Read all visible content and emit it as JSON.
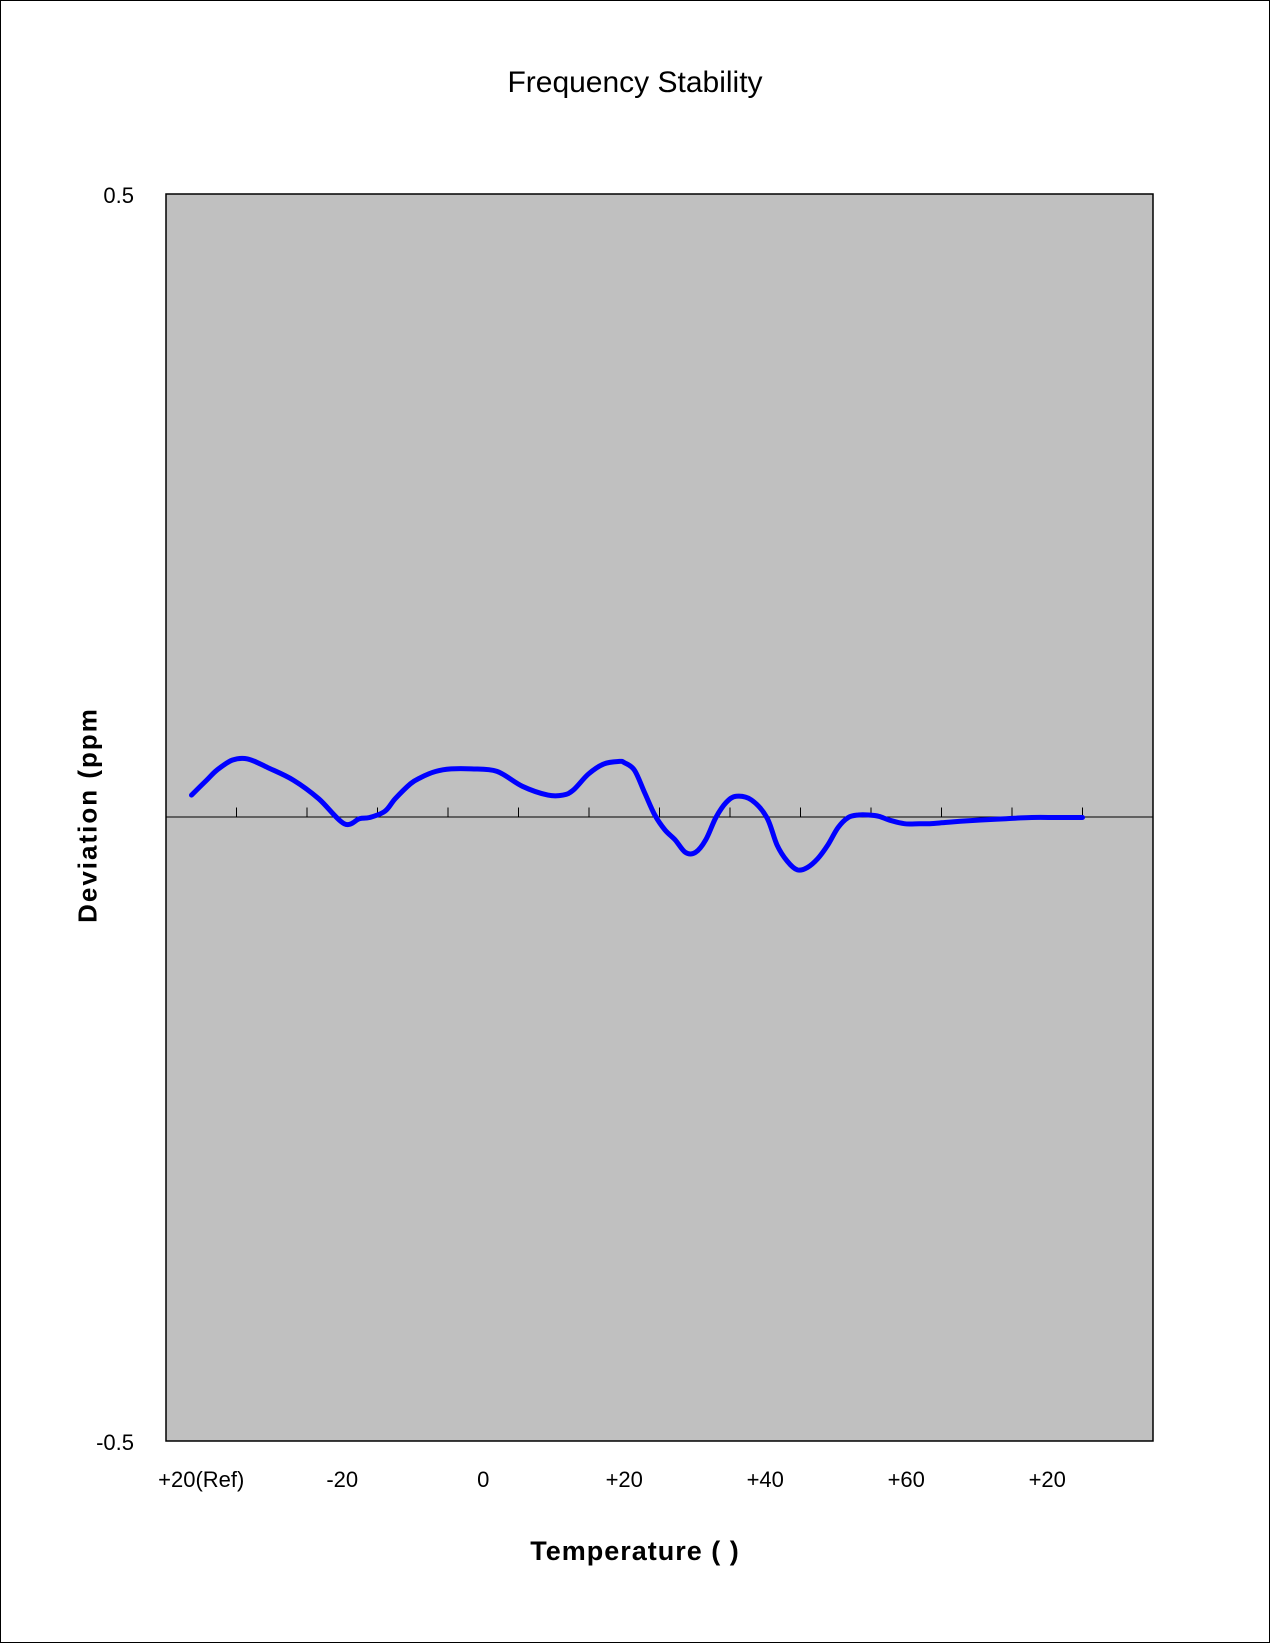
{
  "chart_data": {
    "type": "line",
    "title": "Frequency Stability",
    "xlabel": "Temperature (    )",
    "ylabel": "Deviation (ppm",
    "ylim": [
      -0.5,
      0.5
    ],
    "ytick_labels": [
      "0.5",
      "-0.5"
    ],
    "categories": [
      "+20(Ref)",
      "-20",
      "0",
      "+20",
      "+40",
      "+60",
      "+20"
    ],
    "series": [
      {
        "color": "#0000ff",
        "x": [
          0.5,
          0.8,
          1.0,
          1.3,
          1.6,
          2.0,
          2.5,
          3.0,
          3.5,
          3.8,
          4.0,
          4.3,
          4.5,
          4.8,
          5.0,
          5.3,
          5.6,
          6.0,
          6.5,
          7.0,
          7.5,
          7.8,
          8.0,
          8.3,
          8.6,
          8.9,
          9.0,
          9.2,
          9.4,
          9.6,
          9.8,
          10.0,
          10.2,
          10.4,
          10.6,
          10.8,
          11.0,
          11.2,
          11.5,
          11.8,
          12.0,
          12.2,
          12.4,
          12.6,
          12.8,
          13.0,
          13.2,
          13.4,
          13.6,
          13.8,
          14.0,
          14.2,
          14.5,
          14.8,
          15.0,
          15.3,
          15.6,
          16.0,
          16.5,
          17.0,
          17.5,
          18.0
        ],
        "values": [
          0.018,
          0.03,
          0.038,
          0.046,
          0.047,
          0.04,
          0.03,
          0.015,
          -0.005,
          -0.001,
          0.0,
          0.005,
          0.015,
          0.027,
          0.032,
          0.037,
          0.039,
          0.039,
          0.037,
          0.025,
          0.018,
          0.018,
          0.022,
          0.035,
          0.043,
          0.045,
          0.044,
          0.038,
          0.02,
          0.002,
          -0.01,
          -0.018,
          -0.028,
          -0.028,
          -0.018,
          0.0,
          0.012,
          0.017,
          0.014,
          0.0,
          -0.022,
          -0.035,
          -0.042,
          -0.04,
          -0.033,
          -0.022,
          -0.008,
          0.0,
          0.002,
          0.002,
          0.001,
          -0.002,
          -0.005,
          -0.005,
          -0.005,
          -0.004,
          -0.003,
          -0.002,
          -0.001,
          0.0,
          0.0,
          0.0
        ]
      }
    ]
  }
}
